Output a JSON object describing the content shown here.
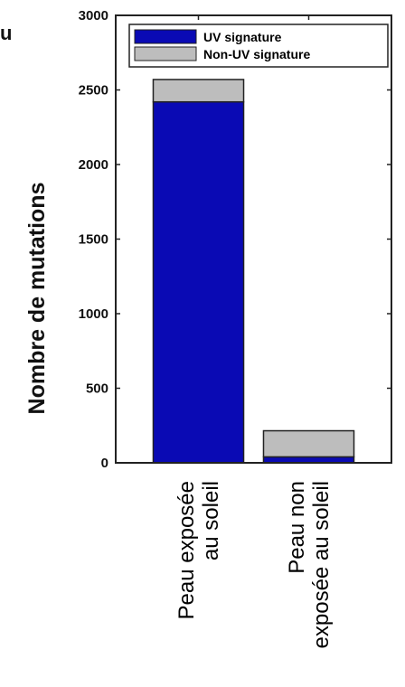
{
  "fragment_text": "u",
  "chart_data": {
    "type": "bar",
    "stacked": true,
    "categories": [
      [
        "Peau exposée",
        "au soleil"
      ],
      [
        "Peau non",
        "exposée au soleil"
      ]
    ],
    "series": [
      {
        "name": "UV signature",
        "values": [
          2420,
          40
        ],
        "color": "#0a0ab4"
      },
      {
        "name": "Non-UV signature",
        "values": [
          150,
          175
        ],
        "color": "#bdbdbd"
      }
    ],
    "xlabel": "",
    "ylabel": "Nombre de mutations",
    "ylim": [
      0,
      3000
    ],
    "yticks": [
      0,
      500,
      1000,
      1500,
      2000,
      2500,
      3000
    ],
    "grid": false,
    "legend": "top-right"
  }
}
